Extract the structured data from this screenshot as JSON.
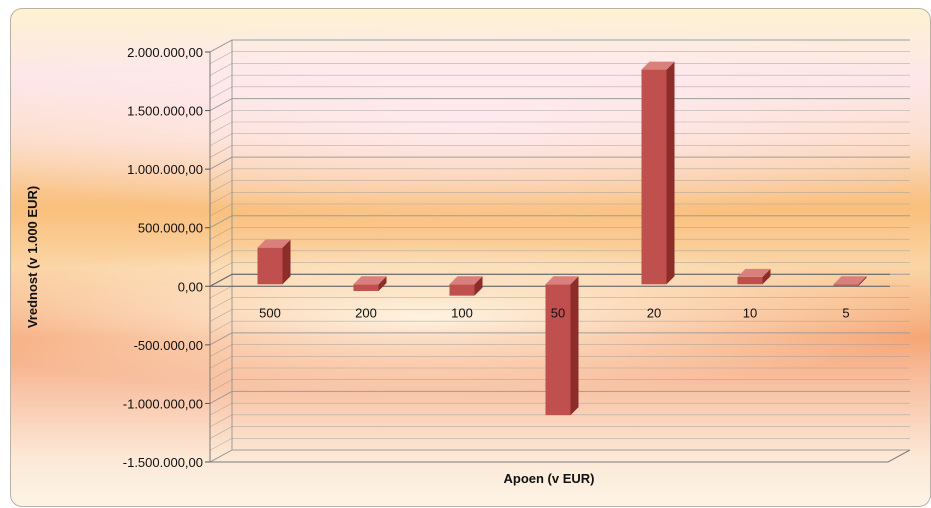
{
  "chart_data": {
    "type": "bar",
    "title": "",
    "xlabel": "Apoen (v EUR)",
    "ylabel": "Vrednost (v 1.000 EUR)",
    "categories": [
      "500",
      "200",
      "100",
      "50",
      "20",
      "10",
      "5"
    ],
    "series": [
      {
        "values": [
          330000,
          -40000,
          -80000,
          -1100000,
          1850000,
          80000,
          5000
        ]
      }
    ],
    "ylim": [
      -1500000,
      2000000
    ],
    "y_ticks": [
      "2.000.000,00",
      "1.500.000,00",
      "1.000.000,00",
      "500.000,00",
      "0,00",
      "-500.000,00",
      "-1.000.000,00",
      "-1.500.000,00"
    ],
    "y_tick_values": [
      2000000,
      1500000,
      1000000,
      500000,
      0,
      -500000,
      -1000000,
      -1500000
    ],
    "grid": true,
    "legend": "none",
    "style": "3d-column",
    "colors": {
      "bar_front": "#c0504d",
      "bar_side": "#8c2d2a",
      "bar_top": "#d9807c",
      "grid": "#9a9a9a"
    }
  }
}
